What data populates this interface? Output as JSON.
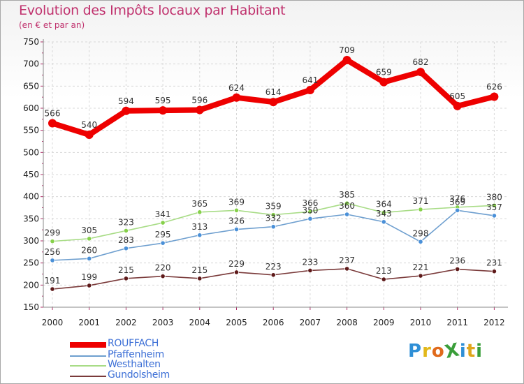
{
  "title": "Evolution des Impôts locaux par Habitant",
  "subtitle": "(en € et par an)",
  "logo": {
    "text": "ProXiti",
    "letters": [
      "P",
      "r",
      "o",
      "X",
      "i",
      "t",
      "i"
    ],
    "colors": [
      "#2f8fd6",
      "#e2b81a",
      "#e06a1c",
      "#3a9e3a",
      "#2f8fd6",
      "#e0a61c",
      "#3a9e3a"
    ]
  },
  "chart_data": {
    "type": "line",
    "title": "Evolution des Impôts locaux par Habitant",
    "subtitle": "(en € et par an)",
    "xlabel": "",
    "ylabel": "",
    "ylim": [
      150,
      750
    ],
    "yticks": [
      150,
      200,
      250,
      300,
      350,
      400,
      450,
      500,
      550,
      600,
      650,
      700,
      750
    ],
    "grid": true,
    "legend_position": "bottom-left",
    "categories": [
      "2000",
      "2001",
      "2002",
      "2003",
      "2004",
      "2005",
      "2006",
      "2007",
      "2008",
      "2009",
      "2010",
      "2011",
      "2012"
    ],
    "series": [
      {
        "name": "ROUFFACH",
        "color": "#ee0000",
        "marker": "#ee0000",
        "values": [
          566,
          540,
          594,
          595,
          596,
          624,
          614,
          641,
          709,
          659,
          682,
          605,
          626
        ],
        "labels": [
          "566",
          "540",
          "594",
          "595",
          "596",
          "624",
          "614",
          "641",
          "709",
          "659",
          "682",
          "605",
          "626"
        ]
      },
      {
        "name": "Pfaffenheim",
        "color": "#6e9fcf",
        "marker": "#4a90d8",
        "values": [
          256,
          260,
          283,
          295,
          313,
          326,
          332,
          350,
          360,
          343,
          298,
          369,
          357
        ],
        "labels": [
          "256",
          "260",
          "283",
          "295",
          "313",
          "326",
          "332",
          "350",
          "360",
          "343",
          "298",
          "369",
          "357"
        ]
      },
      {
        "name": "Westhalten",
        "color": "#a8dc86",
        "marker": "#86d04a",
        "values": [
          299,
          305,
          323,
          341,
          365,
          369,
          359,
          366,
          385,
          364,
          371,
          376,
          380
        ],
        "labels": [
          "299",
          "305",
          "323",
          "341",
          "365",
          "369",
          "359",
          "366",
          "385",
          "364",
          "371",
          "376",
          "380"
        ]
      },
      {
        "name": "Gundolsheim",
        "color": "#7a3a3a",
        "marker": "#5e1a1a",
        "values": [
          191,
          199,
          215,
          220,
          215,
          229,
          223,
          233,
          237,
          213,
          221,
          236,
          231
        ],
        "labels": [
          "191",
          "199",
          "215",
          "220",
          "215",
          "229",
          "223",
          "233",
          "237",
          "213",
          "221",
          "236",
          "231"
        ]
      }
    ]
  }
}
